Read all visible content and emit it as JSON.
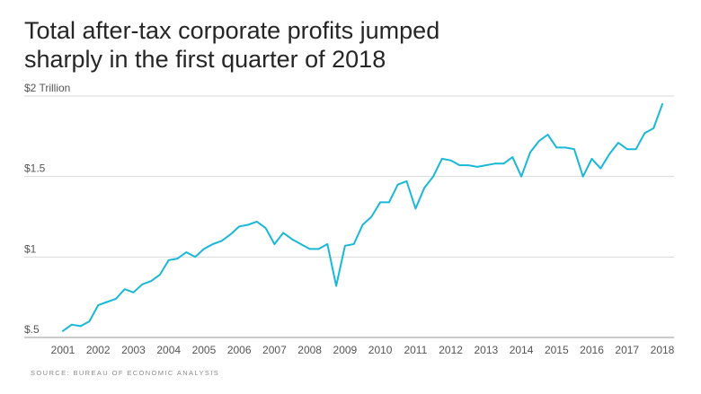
{
  "title_lines": [
    "Total after-tax corporate profits jumped",
    "sharply in the first quarter of 2018"
  ],
  "source": "SOURCE: BUREAU OF ECONOMIC ANALYSIS",
  "colors": {
    "line": "#1ab8d8",
    "grid": "#d9d9d9",
    "text": "#262626",
    "tick": "#555555"
  },
  "chart_data": {
    "type": "line",
    "title": "Total after-tax corporate profits jumped sharply in the first quarter of 2018",
    "xlabel": "",
    "ylabel": "",
    "xlim": [
      2001,
      2018
    ],
    "ylim": [
      0.5,
      2.0
    ],
    "grid": "horizontal",
    "legend": "none",
    "x_ticks": [
      2001,
      2002,
      2003,
      2004,
      2005,
      2006,
      2007,
      2008,
      2009,
      2010,
      2011,
      2012,
      2013,
      2014,
      2015,
      2016,
      2017,
      2018
    ],
    "x_tick_labels": [
      "2001",
      "2002",
      "2003",
      "2004",
      "2005",
      "2006",
      "2007",
      "2008",
      "2009",
      "2010",
      "2011",
      "2012",
      "2013",
      "2014",
      "2015",
      "2016",
      "2017",
      "2018"
    ],
    "y_ticks": [
      0.5,
      1.0,
      1.5,
      2.0
    ],
    "y_tick_labels": [
      "$.5",
      "$1",
      "$1.5",
      "$2 Trillion"
    ],
    "series": [
      {
        "name": "",
        "x": [
          2001.0,
          2001.25,
          2001.5,
          2001.75,
          2002.0,
          2002.25,
          2002.5,
          2002.75,
          2003.0,
          2003.25,
          2003.5,
          2003.75,
          2004.0,
          2004.25,
          2004.5,
          2004.75,
          2005.0,
          2005.25,
          2005.5,
          2005.75,
          2006.0,
          2006.25,
          2006.5,
          2006.75,
          2007.0,
          2007.25,
          2007.5,
          2007.75,
          2008.0,
          2008.25,
          2008.5,
          2008.75,
          2009.0,
          2009.25,
          2009.5,
          2009.75,
          2010.0,
          2010.25,
          2010.5,
          2010.75,
          2011.0,
          2011.25,
          2011.5,
          2011.75,
          2012.0,
          2012.25,
          2012.5,
          2012.75,
          2013.0,
          2013.25,
          2013.5,
          2013.75,
          2014.0,
          2014.25,
          2014.5,
          2014.75,
          2015.0,
          2015.25,
          2015.5,
          2015.75,
          2016.0,
          2016.25,
          2016.5,
          2016.75,
          2017.0,
          2017.25,
          2017.5,
          2017.75,
          2018.0
        ],
        "values": [
          0.54,
          0.58,
          0.57,
          0.6,
          0.7,
          0.72,
          0.74,
          0.8,
          0.78,
          0.83,
          0.85,
          0.89,
          0.98,
          0.99,
          1.03,
          1.0,
          1.05,
          1.08,
          1.1,
          1.14,
          1.19,
          1.2,
          1.22,
          1.18,
          1.08,
          1.15,
          1.11,
          1.08,
          1.05,
          1.05,
          1.08,
          0.82,
          1.07,
          1.08,
          1.2,
          1.25,
          1.34,
          1.34,
          1.45,
          1.47,
          1.3,
          1.43,
          1.5,
          1.61,
          1.6,
          1.57,
          1.57,
          1.56,
          1.57,
          1.58,
          1.58,
          1.62,
          1.5,
          1.65,
          1.72,
          1.76,
          1.68,
          1.68,
          1.67,
          1.5,
          1.61,
          1.55,
          1.64,
          1.71,
          1.67,
          1.67,
          1.77,
          1.8,
          1.95
        ]
      }
    ]
  }
}
